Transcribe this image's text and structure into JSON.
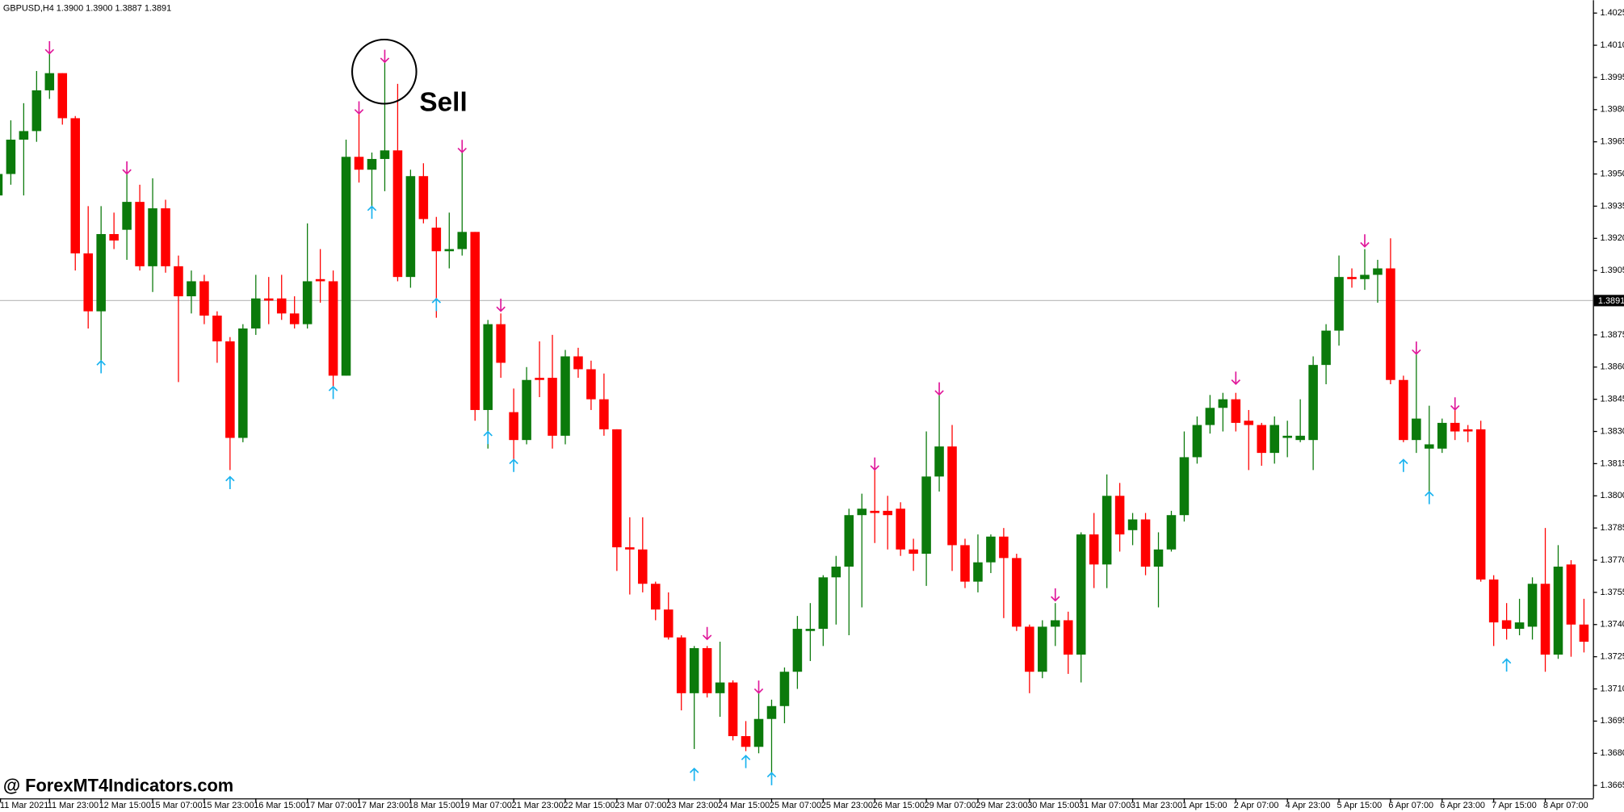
{
  "chart_data": {
    "type": "candlestick",
    "title": "GBPUSD,H4  1.3900 1.3900 1.3887 1.3891",
    "annotation": "Sell",
    "watermark": "@ ForexMT4Indicators.com",
    "categories": [
      "11 Mar 2021",
      null,
      null,
      null,
      "11 Mar 23:00",
      null,
      null,
      null,
      "12 Mar 15:00",
      null,
      null,
      null,
      "15 Mar 07:00",
      null,
      null,
      null,
      "15 Mar 23:00",
      null,
      null,
      null,
      "16 Mar 15:00",
      null,
      null,
      null,
      "17 Mar 07:00",
      null,
      null,
      null,
      "17 Mar 23:00",
      null,
      null,
      null,
      "18 Mar 15:00",
      null,
      null,
      null,
      "19 Mar 07:00",
      null,
      null,
      null,
      "21 Mar 23:00",
      null,
      null,
      null,
      "22 Mar 15:00",
      null,
      null,
      null,
      "23 Mar 07:00",
      null,
      null,
      null,
      "23 Mar 23:00",
      null,
      null,
      null,
      "24 Mar 15:00",
      null,
      null,
      null,
      "25 Mar 07:00",
      null,
      null,
      null,
      "25 Mar 23:00",
      null,
      null,
      null,
      "26 Mar 15:00",
      null,
      null,
      null,
      "29 Mar 07:00",
      null,
      null,
      null,
      "29 Mar 23:00",
      null,
      null,
      null,
      "30 Mar 15:00",
      null,
      null,
      null,
      "31 Mar 07:00",
      null,
      null,
      null,
      "31 Mar 23:00",
      null,
      null,
      null,
      "1 Apr 15:00",
      null,
      null,
      null,
      "2 Apr 07:00",
      null,
      null,
      null,
      "4 Apr 23:00",
      null,
      null,
      null,
      "5 Apr 15:00",
      null,
      null,
      null,
      "6 Apr 07:00",
      null,
      null,
      null,
      "6 Apr 23:00",
      null,
      null,
      null,
      "7 Apr 15:00",
      null,
      null,
      null,
      "8 Apr 07:00",
      null,
      null,
      null
    ],
    "open": [
      1.394,
      1.395,
      1.3966,
      1.397,
      1.3989,
      1.3997,
      1.3976,
      1.3913,
      1.3886,
      1.3922,
      1.3924,
      1.3937,
      1.3907,
      1.3934,
      1.3907,
      1.3893,
      1.39,
      1.3884,
      1.3872,
      1.3827,
      1.3878,
      1.3892,
      1.3892,
      1.3885,
      1.388,
      1.3901,
      1.39,
      1.3856,
      1.3958,
      1.3952,
      1.3957,
      1.3961,
      1.3902,
      1.3949,
      1.3925,
      1.3914,
      1.3915,
      1.3923,
      1.384,
      1.388,
      1.3839,
      1.3826,
      1.3855,
      1.3855,
      1.3828,
      1.3865,
      1.3859,
      1.3845,
      1.3831,
      1.3776,
      1.3775,
      1.3759,
      1.3747,
      1.3734,
      1.3708,
      1.3729,
      1.3708,
      1.3713,
      1.3688,
      1.3683,
      1.3696,
      1.3702,
      1.3718,
      1.3737,
      1.3738,
      1.3762,
      1.3767,
      1.3791,
      1.3793,
      1.3793,
      1.3794,
      1.3775,
      1.3773,
      1.3809,
      1.3823,
      1.3777,
      1.376,
      1.3769,
      1.3781,
      1.3771,
      1.3739,
      1.3718,
      1.3739,
      1.3742,
      1.3726,
      1.3782,
      1.3768,
      1.38,
      1.3784,
      1.3789,
      1.3767,
      1.3775,
      1.3791,
      1.3818,
      1.3833,
      1.3841,
      1.3845,
      1.3835,
      1.3833,
      1.382,
      1.3827,
      1.3826,
      1.3826,
      1.3861,
      1.3877,
      1.3902,
      1.3901,
      1.3903,
      1.3906,
      1.3854,
      1.3826,
      1.3822,
      1.3822,
      1.3834,
      1.3831,
      1.3831,
      1.3761,
      1.3742,
      1.3738,
      1.3739,
      1.3759,
      1.3726,
      1.3768,
      1.374
    ],
    "high": [
      1.3955,
      1.3975,
      1.3983,
      1.3998,
      1.4008,
      1.3997,
      1.3977,
      1.3935,
      1.3935,
      1.3932,
      1.395,
      1.3945,
      1.3948,
      1.3938,
      1.3912,
      1.3905,
      1.3903,
      1.3886,
      1.3874,
      1.388,
      1.3903,
      1.3902,
      1.3903,
      1.3893,
      1.3927,
      1.3915,
      1.3905,
      1.3966,
      1.3978,
      1.396,
      1.4003,
      1.3992,
      1.3952,
      1.3955,
      1.393,
      1.3932,
      1.3963,
      1.3923,
      1.3882,
      1.3885,
      1.385,
      1.386,
      1.3872,
      1.3875,
      1.3868,
      1.3869,
      1.3863,
      1.3857,
      1.3831,
      1.379,
      1.379,
      1.376,
      1.3755,
      1.3735,
      1.373,
      1.373,
      1.3732,
      1.3714,
      1.3695,
      1.3708,
      1.3705,
      1.372,
      1.3744,
      1.375,
      1.3763,
      1.3772,
      1.3794,
      1.3801,
      1.3815,
      1.38,
      1.3797,
      1.378,
      1.383,
      1.3848,
      1.3833,
      1.378,
      1.3782,
      1.3782,
      1.3785,
      1.3773,
      1.374,
      1.3742,
      1.375,
      1.3746,
      1.3783,
      1.3792,
      1.381,
      1.3806,
      1.3792,
      1.3792,
      1.3783,
      1.3793,
      1.383,
      1.3837,
      1.3847,
      1.3848,
      1.3848,
      1.384,
      1.3834,
      1.3837,
      1.3835,
      1.3845,
      1.3865,
      1.388,
      1.3912,
      1.3906,
      1.3915,
      1.391,
      1.392,
      1.3856,
      1.387,
      1.3842,
      1.3836,
      1.384,
      1.3833,
      1.3835,
      1.3763,
      1.375,
      1.3752,
      1.3762,
      1.3785,
      1.3777,
      1.377,
      1.3752
    ],
    "low": [
      1.3935,
      1.3945,
      1.394,
      1.3965,
      1.3985,
      1.3973,
      1.3905,
      1.3878,
      1.3862,
      1.3915,
      1.391,
      1.3905,
      1.3895,
      1.3904,
      1.3853,
      1.3885,
      1.388,
      1.3862,
      1.3812,
      1.3825,
      1.3875,
      1.388,
      1.3882,
      1.3878,
      1.3878,
      1.389,
      1.3851,
      1.3856,
      1.3946,
      1.3933,
      1.3942,
      1.39,
      1.3897,
      1.3927,
      1.3883,
      1.3906,
      1.3912,
      1.3835,
      1.3822,
      1.3855,
      1.3812,
      1.3824,
      1.3846,
      1.3822,
      1.3824,
      1.3855,
      1.384,
      1.3828,
      1.3765,
      1.3754,
      1.3755,
      1.3742,
      1.3733,
      1.37,
      1.3682,
      1.3706,
      1.3697,
      1.3686,
      1.3681,
      1.368,
      1.3668,
      1.3694,
      1.371,
      1.3723,
      1.373,
      1.374,
      1.3735,
      1.3748,
      1.3778,
      1.3775,
      1.3772,
      1.3765,
      1.3758,
      1.3802,
      1.3765,
      1.3757,
      1.3755,
      1.3764,
      1.3743,
      1.3737,
      1.3708,
      1.3715,
      1.373,
      1.3717,
      1.3713,
      1.3757,
      1.3757,
      1.3774,
      1.3777,
      1.3763,
      1.3748,
      1.3774,
      1.3788,
      1.3815,
      1.3829,
      1.383,
      1.383,
      1.3812,
      1.3814,
      1.3815,
      1.3818,
      1.3825,
      1.3812,
      1.3852,
      1.387,
      1.3897,
      1.3896,
      1.389,
      1.3852,
      1.3825,
      1.382,
      1.3802,
      1.382,
      1.3826,
      1.3825,
      1.376,
      1.373,
      1.3733,
      1.3735,
      1.3733,
      1.3718,
      1.3724,
      1.3725,
      1.3727
    ],
    "close": [
      1.395,
      1.3966,
      1.397,
      1.3989,
      1.3997,
      1.3976,
      1.3913,
      1.3886,
      1.3922,
      1.3919,
      1.3937,
      1.3907,
      1.3934,
      1.3907,
      1.3893,
      1.39,
      1.3884,
      1.3872,
      1.3827,
      1.3878,
      1.3892,
      1.3891,
      1.3885,
      1.388,
      1.39,
      1.39,
      1.3856,
      1.3958,
      1.3952,
      1.3957,
      1.3961,
      1.3902,
      1.3949,
      1.3929,
      1.3914,
      1.3915,
      1.3923,
      1.384,
      1.388,
      1.3862,
      1.3826,
      1.3854,
      1.3854,
      1.3828,
      1.3865,
      1.3859,
      1.3845,
      1.3831,
      1.3776,
      1.3775,
      1.3759,
      1.3747,
      1.3734,
      1.3708,
      1.3729,
      1.3708,
      1.3713,
      1.3688,
      1.3683,
      1.3696,
      1.3702,
      1.3718,
      1.3738,
      1.3738,
      1.3762,
      1.3767,
      1.3791,
      1.3794,
      1.3792,
      1.3791,
      1.3775,
      1.3773,
      1.3809,
      1.3823,
      1.3777,
      1.376,
      1.3769,
      1.3781,
      1.3771,
      1.3739,
      1.3718,
      1.3739,
      1.3742,
      1.3726,
      1.3782,
      1.3768,
      1.38,
      1.3782,
      1.3789,
      1.3767,
      1.3775,
      1.3791,
      1.3818,
      1.3833,
      1.3841,
      1.3845,
      1.3834,
      1.3833,
      1.382,
      1.3833,
      1.3828,
      1.3828,
      1.3861,
      1.3877,
      1.3902,
      1.3901,
      1.3903,
      1.3906,
      1.3854,
      1.3826,
      1.3836,
      1.3824,
      1.3834,
      1.383,
      1.383,
      1.3761,
      1.3741,
      1.3738,
      1.3741,
      1.3759,
      1.3726,
      1.3767,
      1.374,
      1.3732
    ],
    "up_color": "#0b7a0b",
    "down_color": "#ff0000",
    "sell_signals": {
      "color": "#e0189a",
      "points": [
        {
          "x": 4,
          "y": 1.4009
        },
        {
          "x": 10,
          "y": 1.3953
        },
        {
          "x": 28,
          "y": 1.3981
        },
        {
          "x": 30,
          "y": 1.4005
        },
        {
          "x": 36,
          "y": 1.3963
        },
        {
          "x": 39,
          "y": 1.3889
        },
        {
          "x": 55,
          "y": 1.3736
        },
        {
          "x": 59,
          "y": 1.3711
        },
        {
          "x": 68,
          "y": 1.3815
        },
        {
          "x": 73,
          "y": 1.385
        },
        {
          "x": 82,
          "y": 1.3754
        },
        {
          "x": 96,
          "y": 1.3855
        },
        {
          "x": 106,
          "y": 1.3919
        },
        {
          "x": 110,
          "y": 1.3869
        },
        {
          "x": 113,
          "y": 1.3843
        }
      ]
    },
    "buy_signals": {
      "color": "#1ab3ef",
      "points": [
        {
          "x": 8,
          "y": 1.386
        },
        {
          "x": 18,
          "y": 1.3806
        },
        {
          "x": 26,
          "y": 1.3848
        },
        {
          "x": 29,
          "y": 1.3932
        },
        {
          "x": 34,
          "y": 1.3889
        },
        {
          "x": 38,
          "y": 1.3827
        },
        {
          "x": 40,
          "y": 1.3814
        },
        {
          "x": 54,
          "y": 1.367
        },
        {
          "x": 58,
          "y": 1.3676
        },
        {
          "x": 60,
          "y": 1.3668
        },
        {
          "x": 109,
          "y": 1.3814
        },
        {
          "x": 111,
          "y": 1.3799
        },
        {
          "x": 117,
          "y": 1.3721
        }
      ]
    },
    "current_price": 1.3891,
    "ylim": [
      1.3659,
      1.4031
    ],
    "yticks": [
      1.4025,
      {
        "value": 1.401,
        "label": "1.4010"
      },
      1.3995,
      {
        "value": 1.398,
        "label": "1.3980"
      },
      1.3965,
      {
        "value": 1.395,
        "label": "1.3950"
      },
      1.3935,
      {
        "value": 1.392,
        "label": "1.3920"
      },
      1.3905,
      1.3875,
      {
        "value": 1.386,
        "label": "1.3860"
      },
      1.3845,
      {
        "value": 1.383,
        "label": "1.3830"
      },
      1.3815,
      {
        "value": 1.38,
        "label": "1.3800"
      },
      1.3785,
      {
        "value": 1.377,
        "label": "1.3770"
      },
      1.3755,
      {
        "value": 1.374,
        "label": "1.3740"
      },
      1.3725,
      {
        "value": 1.371,
        "label": "1.3710"
      },
      1.3695,
      {
        "value": 1.368,
        "label": "1.3680"
      },
      1.3665
    ],
    "grid": false
  }
}
